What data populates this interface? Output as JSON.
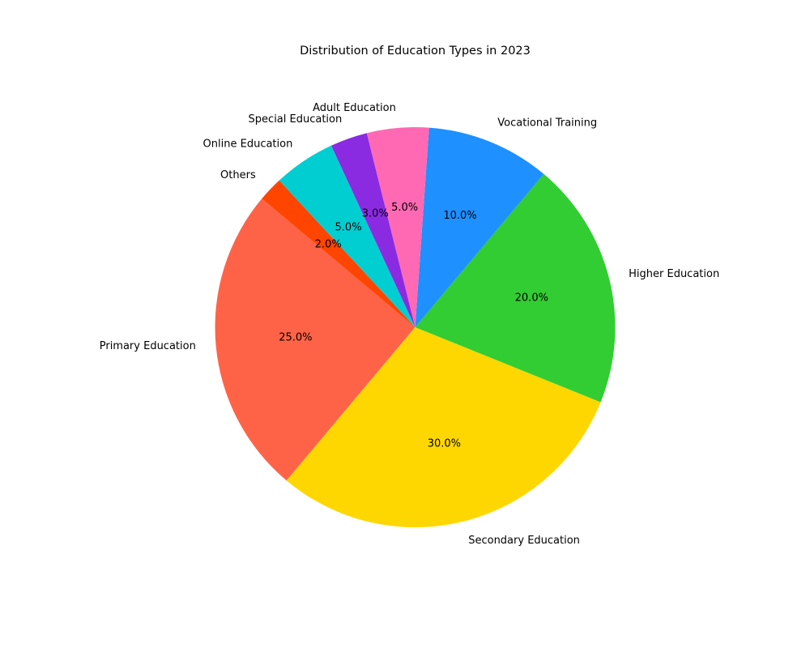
{
  "chart_data": {
    "type": "pie",
    "title": "Distribution of Education Types in 2023",
    "start_angle_deg": 140,
    "direction": "counterclockwise",
    "slices": [
      {
        "label": "Primary Education",
        "value": 25,
        "pct_text": "25.0%",
        "color": "#FF6347"
      },
      {
        "label": "Secondary Education",
        "value": 30,
        "pct_text": "30.0%",
        "color": "#FFD700"
      },
      {
        "label": "Higher Education",
        "value": 20,
        "pct_text": "20.0%",
        "color": "#32CD32"
      },
      {
        "label": "Vocational Training",
        "value": 10,
        "pct_text": "10.0%",
        "color": "#1E90FF"
      },
      {
        "label": "Adult Education",
        "value": 5,
        "pct_text": "5.0%",
        "color": "#FF69B4"
      },
      {
        "label": "Special Education",
        "value": 3,
        "pct_text": "3.0%",
        "color": "#8A2BE2"
      },
      {
        "label": "Online Education",
        "value": 5,
        "pct_text": "5.0%",
        "color": "#00CED1"
      },
      {
        "label": "Others",
        "value": 2,
        "pct_text": "2.0%",
        "color": "#FF4500"
      }
    ]
  }
}
